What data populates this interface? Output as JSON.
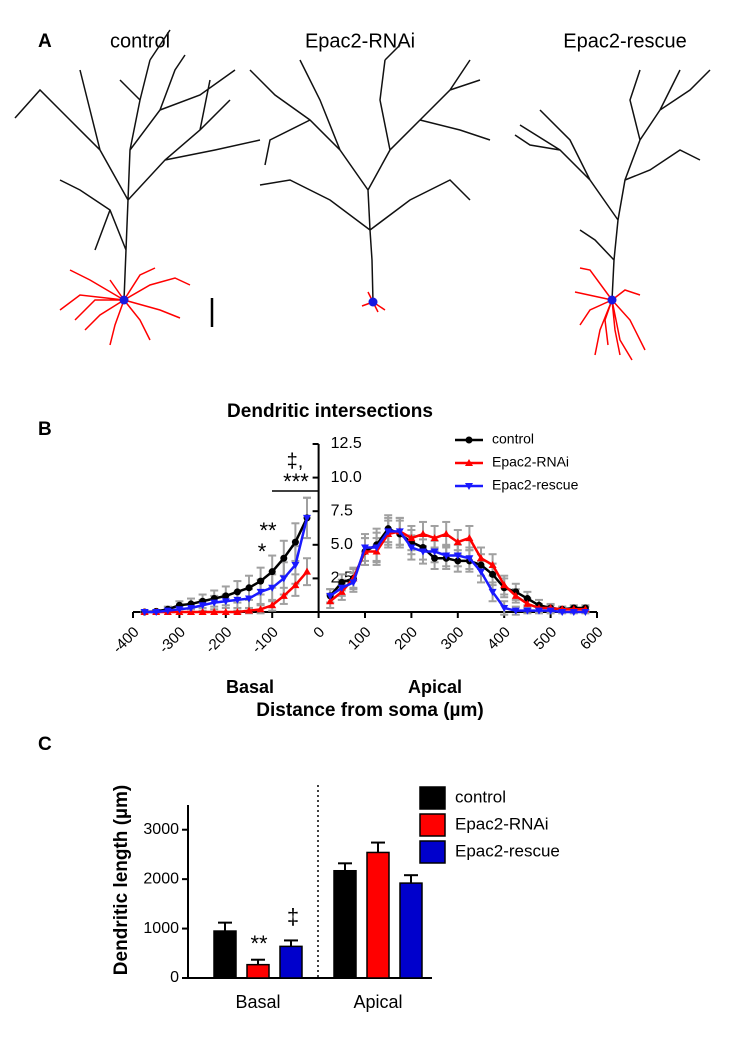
{
  "panel_labels": [
    "A",
    "B",
    "C"
  ],
  "neuron_titles": [
    "control",
    "Epac2-RNAi",
    "Epac2-rescue"
  ],
  "chart_data": [
    {
      "type": "line",
      "title": "Dendritic intersections",
      "xlabel": "Distance from soma (µm)",
      "region_labels": [
        "Basal",
        "Apical"
      ],
      "annotations": [
        "‡,",
        "***",
        "**",
        "*"
      ],
      "x": [
        -375,
        -350,
        -325,
        -300,
        -275,
        -250,
        -225,
        -200,
        -175,
        -150,
        -125,
        -100,
        -75,
        -50,
        -25,
        0,
        25,
        50,
        75,
        100,
        125,
        150,
        175,
        200,
        225,
        250,
        275,
        300,
        325,
        350,
        375,
        400,
        425,
        450,
        475,
        500,
        525,
        550,
        575
      ],
      "xlim": [
        -400,
        600
      ],
      "xticks": [
        -400,
        -300,
        -200,
        -100,
        0,
        100,
        200,
        300,
        400,
        500,
        600
      ],
      "ylim": [
        0,
        12.5
      ],
      "yticks": [
        2.5,
        {
          "value": 5,
          "label": "5.0"
        },
        7.5,
        {
          "value": 10,
          "label": "10.0"
        },
        12.5
      ],
      "error_color": "#a0a0a0",
      "series": [
        {
          "name": "control",
          "color": "#000000",
          "marker": "circle",
          "values": [
            0,
            0.05,
            0.2,
            0.5,
            0.6,
            0.8,
            1.0,
            1.2,
            1.5,
            1.8,
            2.3,
            3.0,
            4.0,
            5.2,
            7.0,
            null,
            1.2,
            2.2,
            2.5,
            4.5,
            5.0,
            6.2,
            5.8,
            5.2,
            4.8,
            4.0,
            4.0,
            3.8,
            3.8,
            3.5,
            2.8,
            1.8,
            1.5,
            1.0,
            0.5,
            0.3,
            0.2,
            0.3,
            0.3
          ],
          "errors": [
            0.1,
            0.1,
            0.2,
            0.3,
            0.4,
            0.5,
            0.6,
            0.7,
            0.8,
            0.9,
            1.0,
            1.2,
            1.3,
            1.4,
            1.5,
            null,
            0.5,
            0.6,
            0.7,
            1.0,
            1.2,
            1.0,
            1.0,
            0.9,
            0.9,
            0.8,
            0.8,
            0.8,
            0.8,
            0.8,
            0.8,
            0.7,
            0.6,
            0.5,
            0.4,
            0.3,
            0.2,
            0.2,
            0.2
          ]
        },
        {
          "name": "Epac2-RNAi",
          "color": "#ff0000",
          "marker": "triangle-up",
          "values": [
            0,
            0,
            0,
            0,
            0,
            0,
            0,
            0,
            0,
            0.1,
            0.2,
            0.5,
            1.2,
            2.0,
            3.0,
            null,
            0.8,
            1.5,
            2.5,
            4.5,
            4.5,
            5.8,
            6.0,
            5.5,
            5.8,
            5.5,
            5.8,
            5.2,
            5.5,
            4.0,
            3.5,
            2.0,
            1.2,
            0.6,
            0.3,
            0.3,
            0.2,
            0.2,
            0.2
          ],
          "errors": [
            0,
            0,
            0,
            0,
            0,
            0,
            0,
            0,
            0.1,
            0.2,
            0.3,
            0.4,
            0.6,
            0.8,
            1.0,
            null,
            0.5,
            0.6,
            0.8,
            1.0,
            1.0,
            1.0,
            1.0,
            0.9,
            0.9,
            0.9,
            0.9,
            0.9,
            0.9,
            0.8,
            0.8,
            0.7,
            0.5,
            0.4,
            0.3,
            0.2,
            0.2,
            0.2,
            0.2
          ]
        },
        {
          "name": "Epac2-rescue",
          "color": "#1a1aff",
          "marker": "triangle-down",
          "values": [
            0,
            0,
            0.1,
            0.2,
            0.3,
            0.5,
            0.7,
            0.8,
            0.9,
            1.0,
            1.5,
            1.8,
            2.5,
            3.5,
            7.0,
            null,
            1.2,
            1.8,
            2.2,
            4.8,
            4.8,
            6.0,
            6.0,
            4.8,
            4.5,
            4.5,
            4.2,
            4.2,
            4.0,
            3.0,
            1.5,
            0.3,
            0.1,
            0.1,
            0.1,
            0.1,
            0,
            0,
            0
          ],
          "errors": [
            0,
            0,
            0.1,
            0.2,
            0.3,
            0.4,
            0.5,
            0.5,
            0.6,
            0.7,
            0.9,
            1.0,
            1.2,
            1.4,
            1.5,
            null,
            0.5,
            0.6,
            0.7,
            1.0,
            1.1,
            1.0,
            1.0,
            0.9,
            0.9,
            0.8,
            0.8,
            0.8,
            0.8,
            0.8,
            0.7,
            0.5,
            0.3,
            0.2,
            0.2,
            0.2,
            0.1,
            0.1,
            0.1
          ]
        }
      ],
      "legend": "upper right"
    },
    {
      "type": "bar",
      "ylabel": "Dendritic length (µm)",
      "categories": [
        "Basal",
        "Apical"
      ],
      "ylim": [
        0,
        3500
      ],
      "yticks": [
        0,
        1000,
        2000,
        3000
      ],
      "annotations": [
        "**",
        "‡"
      ],
      "series": [
        {
          "name": "control",
          "color": "#000000",
          "values": [
            950,
            2170
          ],
          "errors": [
            170,
            150
          ]
        },
        {
          "name": "Epac2-RNAi",
          "color": "#ff0000",
          "values": [
            270,
            2540
          ],
          "errors": [
            100,
            200
          ]
        },
        {
          "name": "Epac2-rescue",
          "color": "#0000cc",
          "values": [
            640,
            1920
          ],
          "errors": [
            120,
            160
          ]
        }
      ],
      "legend": "upper right"
    }
  ]
}
